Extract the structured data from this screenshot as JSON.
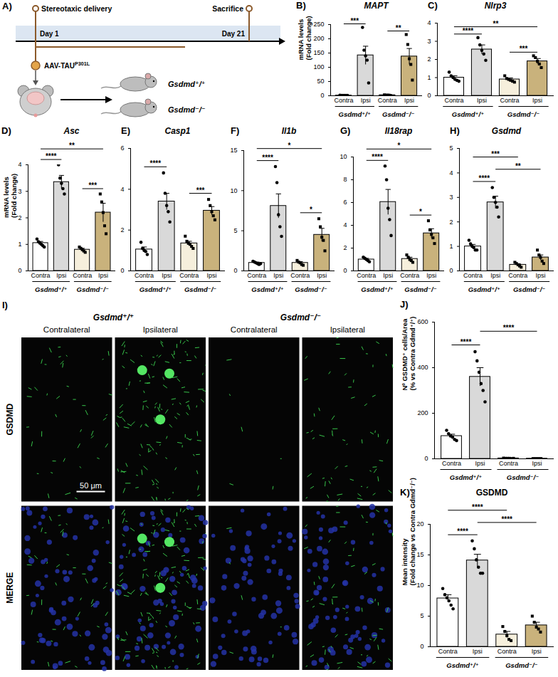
{
  "diagram": {
    "panel": "A)",
    "events": [
      {
        "label": "Stereotaxic delivery",
        "day": "Day 1"
      },
      {
        "label": "Sacrifice",
        "day": "Day 21"
      }
    ],
    "vector": "AAV-TAU",
    "vector_sup": "P301L",
    "groups": [
      "Gsdmd⁺/⁺",
      "Gsdmd⁻/⁻"
    ]
  },
  "images": {
    "panel": "I)",
    "groups": [
      "Gsdmd⁺/⁺",
      "Gsdmd⁻/⁻"
    ],
    "columns": [
      "Contralateral",
      "Ipsilateral"
    ],
    "rows": [
      "GSDMD",
      "MERGE"
    ],
    "scale_bar": "50 μm"
  },
  "chart_data": [
    {
      "panel": "B)",
      "type": "bar",
      "title": "MAPT",
      "ylabel": [
        "mRNA levels",
        "(Fold change)"
      ],
      "categories": [
        "Contra",
        "Ipsi"
      ],
      "series": [
        {
          "name": "Gsdmd⁺/⁺",
          "marker": "circle",
          "colors": [
            "#ffffff",
            "#d9d9d9"
          ],
          "values": [
            1,
            142
          ],
          "errors": [
            0.3,
            32
          ],
          "points": [
            [
              2,
              1,
              1,
              1,
              1,
              1
            ],
            [
              240,
              160,
              140,
              125,
              45
            ]
          ]
        },
        {
          "name": "Gsdmd⁻/⁻",
          "marker": "square",
          "colors": [
            "#f6efdc",
            "#c9b27c"
          ],
          "values": [
            2,
            138
          ],
          "errors": [
            0.4,
            28
          ],
          "points": [
            [
              3,
              2,
              2,
              2,
              1
            ],
            [
              215,
              180,
              130,
              110,
              55
            ]
          ]
        }
      ],
      "ylim": [
        0,
        250
      ],
      "yticks": [
        0,
        50,
        100,
        150,
        200,
        250
      ],
      "significance": [
        {
          "from": 0,
          "to": 1,
          "label": "***"
        },
        {
          "from": 2,
          "to": 3,
          "label": "**"
        }
      ]
    },
    {
      "panel": "C)",
      "type": "bar",
      "title": "Nlrp3",
      "categories": [
        "Contra",
        "Ipsi"
      ],
      "series": [
        {
          "name": "Gsdmd⁺/⁺",
          "marker": "circle",
          "colors": [
            "#ffffff",
            "#d9d9d9"
          ],
          "values": [
            1.0,
            2.55
          ],
          "errors": [
            0.1,
            0.25
          ],
          "points": [
            [
              1.3,
              1.1,
              1.0,
              0.9,
              0.85,
              0.8
            ],
            [
              3.2,
              2.8,
              2.5,
              2.3,
              1.95
            ]
          ]
        },
        {
          "name": "Gsdmd⁻/⁻",
          "marker": "square",
          "colors": [
            "#f6efdc",
            "#c9b27c"
          ],
          "values": [
            0.9,
            1.9
          ],
          "errors": [
            0.08,
            0.15
          ],
          "points": [
            [
              1.1,
              0.95,
              0.9,
              0.85,
              0.8,
              0.75
            ],
            [
              2.2,
              2.1,
              1.9,
              1.75,
              1.55
            ]
          ]
        }
      ],
      "ylim": [
        0,
        4
      ],
      "yticks": [
        0,
        1,
        2,
        3,
        4
      ],
      "significance": [
        {
          "from": 0,
          "to": 1,
          "label": "****"
        },
        {
          "from": 2,
          "to": 3,
          "label": "***"
        },
        {
          "from": 0,
          "to": 3,
          "label": "**"
        }
      ]
    },
    {
      "panel": "D)",
      "type": "bar",
      "title": "Asc",
      "ylabel": [
        "mRNA levels",
        "(Fold change)"
      ],
      "categories": [
        "Contra",
        "Ipsi"
      ],
      "series": [
        {
          "name": "Gsdmd⁺/⁺",
          "marker": "circle",
          "colors": [
            "#ffffff",
            "#d9d9d9"
          ],
          "values": [
            1.05,
            3.35
          ],
          "errors": [
            0.06,
            0.25
          ],
          "points": [
            [
              1.2,
              1.1,
              1.05,
              1.0,
              0.95,
              0.9
            ],
            [
              4.0,
              3.5,
              3.3,
              3.1,
              2.9
            ]
          ]
        },
        {
          "name": "Gsdmd⁻/⁻",
          "marker": "square",
          "colors": [
            "#f6efdc",
            "#c9b27c"
          ],
          "values": [
            0.8,
            2.2
          ],
          "errors": [
            0.05,
            0.35
          ],
          "points": [
            [
              0.9,
              0.85,
              0.8,
              0.75,
              0.7
            ],
            [
              2.9,
              2.6,
              2.2,
              1.7,
              1.4
            ]
          ]
        }
      ],
      "ylim": [
        0,
        4
      ],
      "yticks": [
        0,
        1,
        2,
        3,
        4
      ],
      "significance": [
        {
          "from": 0,
          "to": 1,
          "label": "****"
        },
        {
          "from": 2,
          "to": 3,
          "label": "***"
        },
        {
          "from": 0,
          "to": 3,
          "label": "**"
        }
      ]
    },
    {
      "panel": "E)",
      "type": "bar",
      "title": "Casp1",
      "categories": [
        "Contra",
        "Ipsi"
      ],
      "series": [
        {
          "name": "Gsdmd⁺/⁺",
          "marker": "circle",
          "colors": [
            "#ffffff",
            "#d9d9d9"
          ],
          "values": [
            1.05,
            3.4
          ],
          "errors": [
            0.12,
            0.4
          ],
          "points": [
            [
              1.4,
              1.1,
              1.0,
              0.95,
              0.8
            ],
            [
              4.8,
              3.8,
              3.2,
              2.9,
              2.4
            ]
          ]
        },
        {
          "name": "Gsdmd⁻/⁻",
          "marker": "square",
          "colors": [
            "#f6efdc",
            "#c9b27c"
          ],
          "values": [
            1.35,
            2.95
          ],
          "errors": [
            0.1,
            0.2
          ],
          "points": [
            [
              1.7,
              1.45,
              1.35,
              1.3,
              1.2,
              1.1
            ],
            [
              3.5,
              3.2,
              2.9,
              2.7,
              2.5
            ]
          ]
        }
      ],
      "ylim": [
        0,
        6
      ],
      "yticks": [
        0,
        2,
        4,
        6
      ],
      "significance": [
        {
          "from": 0,
          "to": 1,
          "label": "****"
        },
        {
          "from": 2,
          "to": 3,
          "label": "***"
        }
      ]
    },
    {
      "panel": "F)",
      "type": "bar",
      "title": "Il1b",
      "categories": [
        "Contra",
        "Ipsi"
      ],
      "series": [
        {
          "name": "Gsdmd⁺/⁺",
          "marker": "circle",
          "colors": [
            "#ffffff",
            "#d9d9d9"
          ],
          "values": [
            1.0,
            8.1
          ],
          "errors": [
            0.1,
            1.5
          ],
          "points": [
            [
              1.2,
              1.1,
              1.0,
              0.9,
              0.8,
              0.9
            ],
            [
              13,
              11,
              7,
              5.5,
              4.3
            ]
          ]
        },
        {
          "name": "Gsdmd⁻/⁻",
          "marker": "square",
          "colors": [
            "#f6efdc",
            "#c9b27c"
          ],
          "values": [
            1.0,
            4.5
          ],
          "errors": [
            0.15,
            0.8
          ],
          "points": [
            [
              1.3,
              1.1,
              1.0,
              0.8,
              0.7
            ],
            [
              6.5,
              5.5,
              4.2,
              3.8,
              2.5
            ]
          ]
        }
      ],
      "ylim": [
        0,
        15
      ],
      "yticks": [
        0,
        5,
        10,
        15
      ],
      "significance": [
        {
          "from": 0,
          "to": 1,
          "label": "****"
        },
        {
          "from": 2,
          "to": 3,
          "label": "*"
        },
        {
          "from": 0,
          "to": 3,
          "label": "*"
        }
      ]
    },
    {
      "panel": "G)",
      "type": "bar",
      "title": "Il18rap",
      "categories": [
        "Contra",
        "Ipsi"
      ],
      "series": [
        {
          "name": "Gsdmd⁺/⁺",
          "marker": "circle",
          "colors": [
            "#ffffff",
            "#d9d9d9"
          ],
          "values": [
            1.0,
            6.05
          ],
          "errors": [
            0.1,
            1.1
          ],
          "points": [
            [
              1.2,
              1.1,
              1.0,
              0.9,
              0.8
            ],
            [
              9.2,
              8.0,
              5.5,
              4.5,
              3.1
            ]
          ]
        },
        {
          "name": "Gsdmd⁻/⁻",
          "marker": "square",
          "colors": [
            "#f6efdc",
            "#c9b27c"
          ],
          "values": [
            1.05,
            3.3
          ],
          "errors": [
            0.15,
            0.4
          ],
          "points": [
            [
              1.4,
              1.2,
              1.0,
              0.9,
              0.75
            ],
            [
              4.4,
              3.6,
              3.2,
              2.9,
              2.4
            ]
          ]
        }
      ],
      "ylim": [
        0,
        10
      ],
      "yticks": [
        0,
        2,
        4,
        6,
        8,
        10
      ],
      "significance": [
        {
          "from": 0,
          "to": 1,
          "label": "****"
        },
        {
          "from": 2,
          "to": 3,
          "label": "*"
        },
        {
          "from": 0,
          "to": 3,
          "label": "*"
        }
      ]
    },
    {
      "panel": "H)",
      "type": "bar",
      "title": "Gsdmd",
      "categories": [
        "Contra",
        "Ipsi"
      ],
      "series": [
        {
          "name": "Gsdmd⁺/⁺",
          "marker": "circle",
          "colors": [
            "#ffffff",
            "#d9d9d9"
          ],
          "values": [
            1.0,
            2.8
          ],
          "errors": [
            0.08,
            0.25
          ],
          "points": [
            [
              1.25,
              1.1,
              1.0,
              0.95,
              0.85,
              0.85
            ],
            [
              3.4,
              3.0,
              2.8,
              2.6,
              2.2
            ]
          ]
        },
        {
          "name": "Gsdmd⁻/⁻",
          "marker": "square",
          "colors": [
            "#f6efdc",
            "#c9b27c"
          ],
          "values": [
            0.25,
            0.55
          ],
          "errors": [
            0.04,
            0.1
          ],
          "points": [
            [
              0.35,
              0.3,
              0.25,
              0.2,
              0.15
            ],
            [
              0.85,
              0.65,
              0.55,
              0.4,
              0.3
            ]
          ]
        }
      ],
      "ylim": [
        0,
        5
      ],
      "yticks": [
        0,
        1,
        2,
        3,
        4,
        5
      ],
      "significance": [
        {
          "from": 0,
          "to": 1,
          "label": "****"
        },
        {
          "from": 1,
          "to": 3,
          "label": "**"
        },
        {
          "from": 0,
          "to": 2,
          "label": "***"
        }
      ]
    },
    {
      "panel": "J)",
      "type": "bar",
      "ylabel": [
        "Nº GSDMD⁺ cells/Area",
        "(% vs Contra Gdmd⁺/⁺)"
      ],
      "categories": [
        "Contra",
        "Ipsi"
      ],
      "series": [
        {
          "name": "Gsdmd⁺/⁺",
          "marker": "circle",
          "colors": [
            "#ffffff",
            "#d9d9d9"
          ],
          "values": [
            100,
            360
          ],
          "errors": [
            8,
            40
          ],
          "points": [
            [
              125,
              110,
              100,
              95,
              85,
              80
            ],
            [
              470,
              430,
              380,
              330,
              300,
              250
            ]
          ]
        },
        {
          "name": "Gsdmd⁻/⁻",
          "marker": "square",
          "colors": [
            "#f6efdc",
            "#c9b27c"
          ],
          "values": [
            2,
            1
          ],
          "errors": [
            0.5,
            0.1
          ],
          "points": [
            [
              3,
              2,
              2,
              2,
              1,
              2
            ],
            [
              1,
              1,
              1,
              1,
              1
            ]
          ]
        }
      ],
      "ylim": [
        0,
        600
      ],
      "yticks": [
        0,
        200,
        400,
        600
      ],
      "significance": [
        {
          "from": 0,
          "to": 1,
          "label": "****"
        },
        {
          "from": 1,
          "to": 3,
          "label": "****"
        }
      ]
    },
    {
      "panel": "K)",
      "type": "bar",
      "title": "GSDMD",
      "ylabel": [
        "Mean intensity",
        "(Fold change vs Contra Gdmd⁻/⁻)"
      ],
      "categories": [
        "Contra",
        "Ipsi"
      ],
      "series": [
        {
          "name": "Gsdmd⁺/⁺",
          "marker": "circle",
          "colors": [
            "#ffffff",
            "#d9d9d9"
          ],
          "values": [
            7.9,
            14.1
          ],
          "errors": [
            0.6,
            1.0
          ],
          "points": [
            [
              9.5,
              8.5,
              8.0,
              7.5,
              6.8,
              6.2
            ],
            [
              17.3,
              16.0,
              14.2,
              13.0,
              12.0,
              12.0
            ]
          ]
        },
        {
          "name": "Gsdmd⁻/⁻",
          "marker": "square",
          "colors": [
            "#f6efdc",
            "#c9b27c"
          ],
          "values": [
            2.0,
            3.5
          ],
          "errors": [
            0.5,
            0.5
          ],
          "points": [
            [
              3.3,
              2.5,
              1.8,
              1.2,
              1.0
            ],
            [
              5.0,
              4.0,
              3.2,
              2.9,
              2.4
            ]
          ]
        }
      ],
      "ylim": [
        0,
        20
      ],
      "yticks": [
        0,
        5,
        10,
        15,
        20
      ],
      "significance": [
        {
          "from": 0,
          "to": 1,
          "label": "****"
        },
        {
          "from": 1,
          "to": 3,
          "label": "****"
        },
        {
          "from": 0,
          "to": 2,
          "label": "****"
        }
      ]
    }
  ]
}
